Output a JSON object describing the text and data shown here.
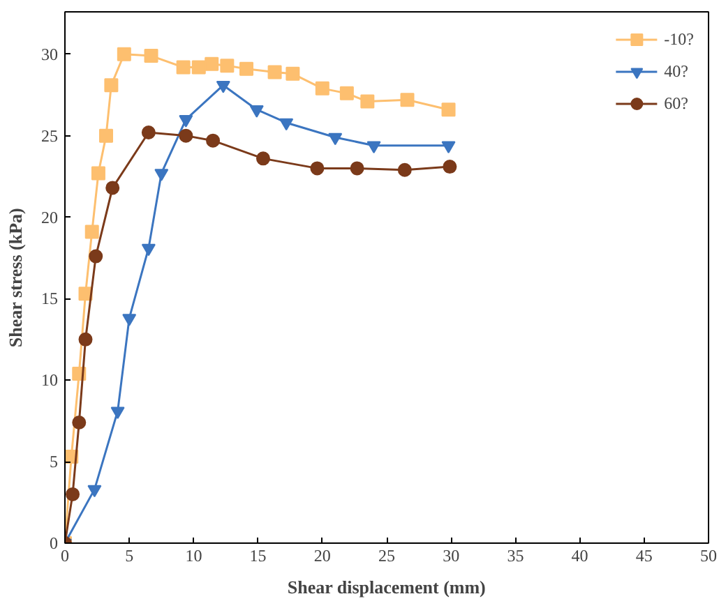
{
  "chart_data": {
    "type": "line",
    "xlabel": "Shear displacement (mm)",
    "ylabel": "Shear stress (kPa)",
    "xlim": [
      0,
      50
    ],
    "ylim": [
      0,
      32.6
    ],
    "xticks": [
      0,
      5,
      10,
      15,
      20,
      25,
      30,
      35,
      40,
      45,
      50
    ],
    "yticks": [
      0,
      5,
      10,
      15,
      20,
      25,
      30
    ],
    "grid": false,
    "legend": "top right",
    "series": [
      {
        "name": "-10?",
        "color": "#fdbf6f",
        "marker": "square",
        "x": [
          0,
          0.5,
          1.1,
          1.6,
          2.1,
          2.6,
          3.2,
          3.6,
          4.6,
          6.7,
          9.2,
          10.4,
          11.4,
          12.6,
          14.1,
          16.3,
          17.7,
          20.0,
          21.9,
          23.5,
          26.6,
          29.8
        ],
        "values": [
          0,
          5.3,
          10.4,
          15.3,
          19.1,
          22.7,
          25.0,
          28.1,
          30.0,
          29.9,
          29.2,
          29.2,
          29.4,
          29.3,
          29.1,
          28.9,
          28.8,
          27.9,
          27.6,
          27.1,
          27.2,
          26.6
        ]
      },
      {
        "name": "40?",
        "color": "#3b75c0",
        "marker": "triangle",
        "x": [
          0,
          2.3,
          4.1,
          5.0,
          6.5,
          7.5,
          9.4,
          12.3,
          14.9,
          17.2,
          21.0,
          24.0,
          29.8
        ],
        "values": [
          0,
          3.3,
          8.1,
          13.8,
          18.1,
          22.7,
          26.0,
          28.1,
          26.6,
          25.8,
          24.9,
          24.4,
          24.4
        ]
      },
      {
        "name": "60?",
        "color": "#7b3a1a",
        "marker": "circle",
        "x": [
          0,
          0.6,
          1.1,
          1.6,
          2.4,
          3.7,
          6.5,
          9.4,
          11.5,
          15.4,
          19.6,
          22.7,
          26.4,
          29.9
        ],
        "values": [
          0,
          3.0,
          7.4,
          12.5,
          17.6,
          21.8,
          25.2,
          25.0,
          24.7,
          23.6,
          23.0,
          23.0,
          22.9,
          23.1
        ]
      }
    ]
  }
}
